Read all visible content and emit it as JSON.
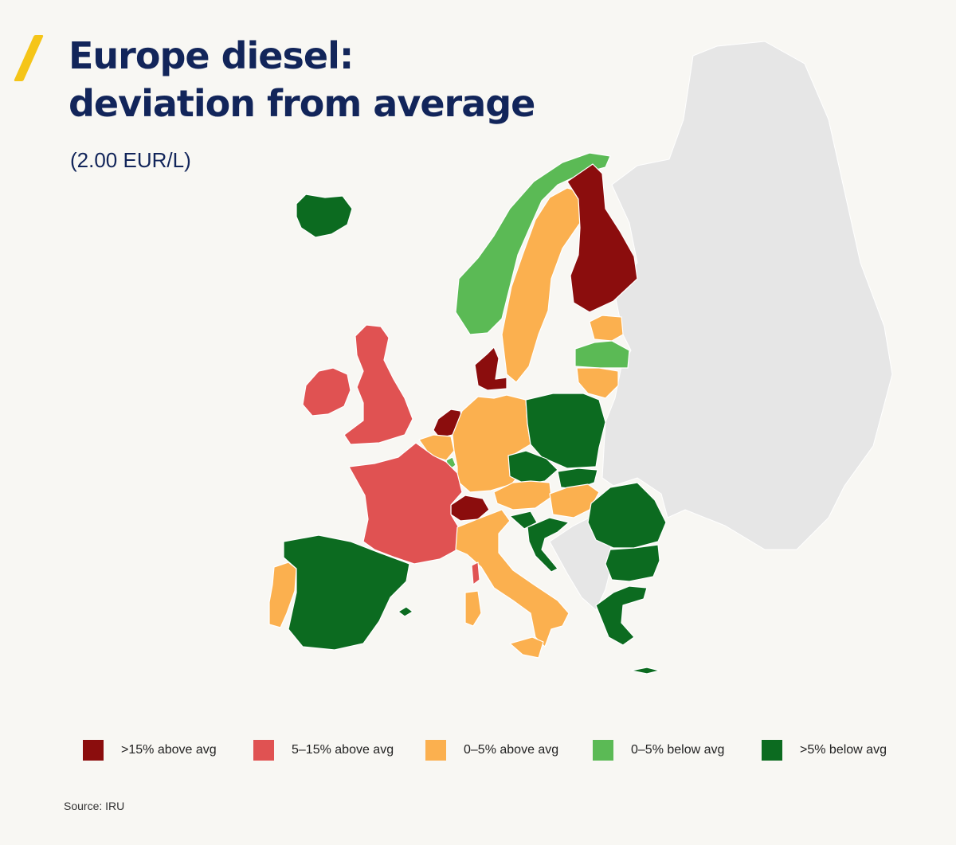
{
  "header": {
    "title_line1": "Europe diesel:",
    "title_line2": "deviation from average",
    "subtitle": "(2.00 EUR/L)"
  },
  "colors": {
    "above_15": "#8b0d0d",
    "above_5_15": "#e05252",
    "above_0_5": "#fbb04f",
    "below_0_5": "#5bba55",
    "below_5": "#0c6b20",
    "no_data": "#e6e6e6",
    "accent": "#f5c518",
    "title": "#12255a"
  },
  "legend": [
    {
      "label": ">15% above avg",
      "color": "#8b0d0d"
    },
    {
      "label": "5–15% above avg",
      "color": "#e05252"
    },
    {
      "label": "0–5% above avg",
      "color": "#fbb04f"
    },
    {
      "label": "0–5% below avg",
      "color": "#5bba55"
    },
    {
      "label": ">5% below avg",
      "color": "#0c6b20"
    }
  ],
  "regions": {
    "Iceland": "below_5",
    "Norway": "below_0_5",
    "Sweden": "above_0_5",
    "Finland": "above_15",
    "Estonia": "above_0_5",
    "Latvia": "below_0_5",
    "Lithuania": "above_0_5",
    "Denmark": "above_15",
    "Ireland": "above_5_15",
    "United Kingdom": "above_5_15",
    "Netherlands": "above_15",
    "Belgium": "above_0_5",
    "Luxembourg": "below_0_5",
    "Germany": "above_0_5",
    "Poland": "below_5",
    "Czechia": "below_5",
    "Slovakia": "below_5",
    "Austria": "above_0_5",
    "Hungary": "above_0_5",
    "Switzerland": "above_15",
    "France": "above_5_15",
    "Portugal": "above_0_5",
    "Spain": "below_5",
    "Italy": "above_0_5",
    "Corsica": "above_5_15",
    "Sardinia": "above_0_5",
    "Sicily": "above_0_5",
    "Slovenia": "below_5",
    "Croatia": "below_5",
    "Romania": "below_5",
    "Bulgaria": "below_5",
    "Greece": "below_5",
    "Crete": "below_5",
    "Balearic Islands": "below_5"
  },
  "source": "Source: IRU"
}
